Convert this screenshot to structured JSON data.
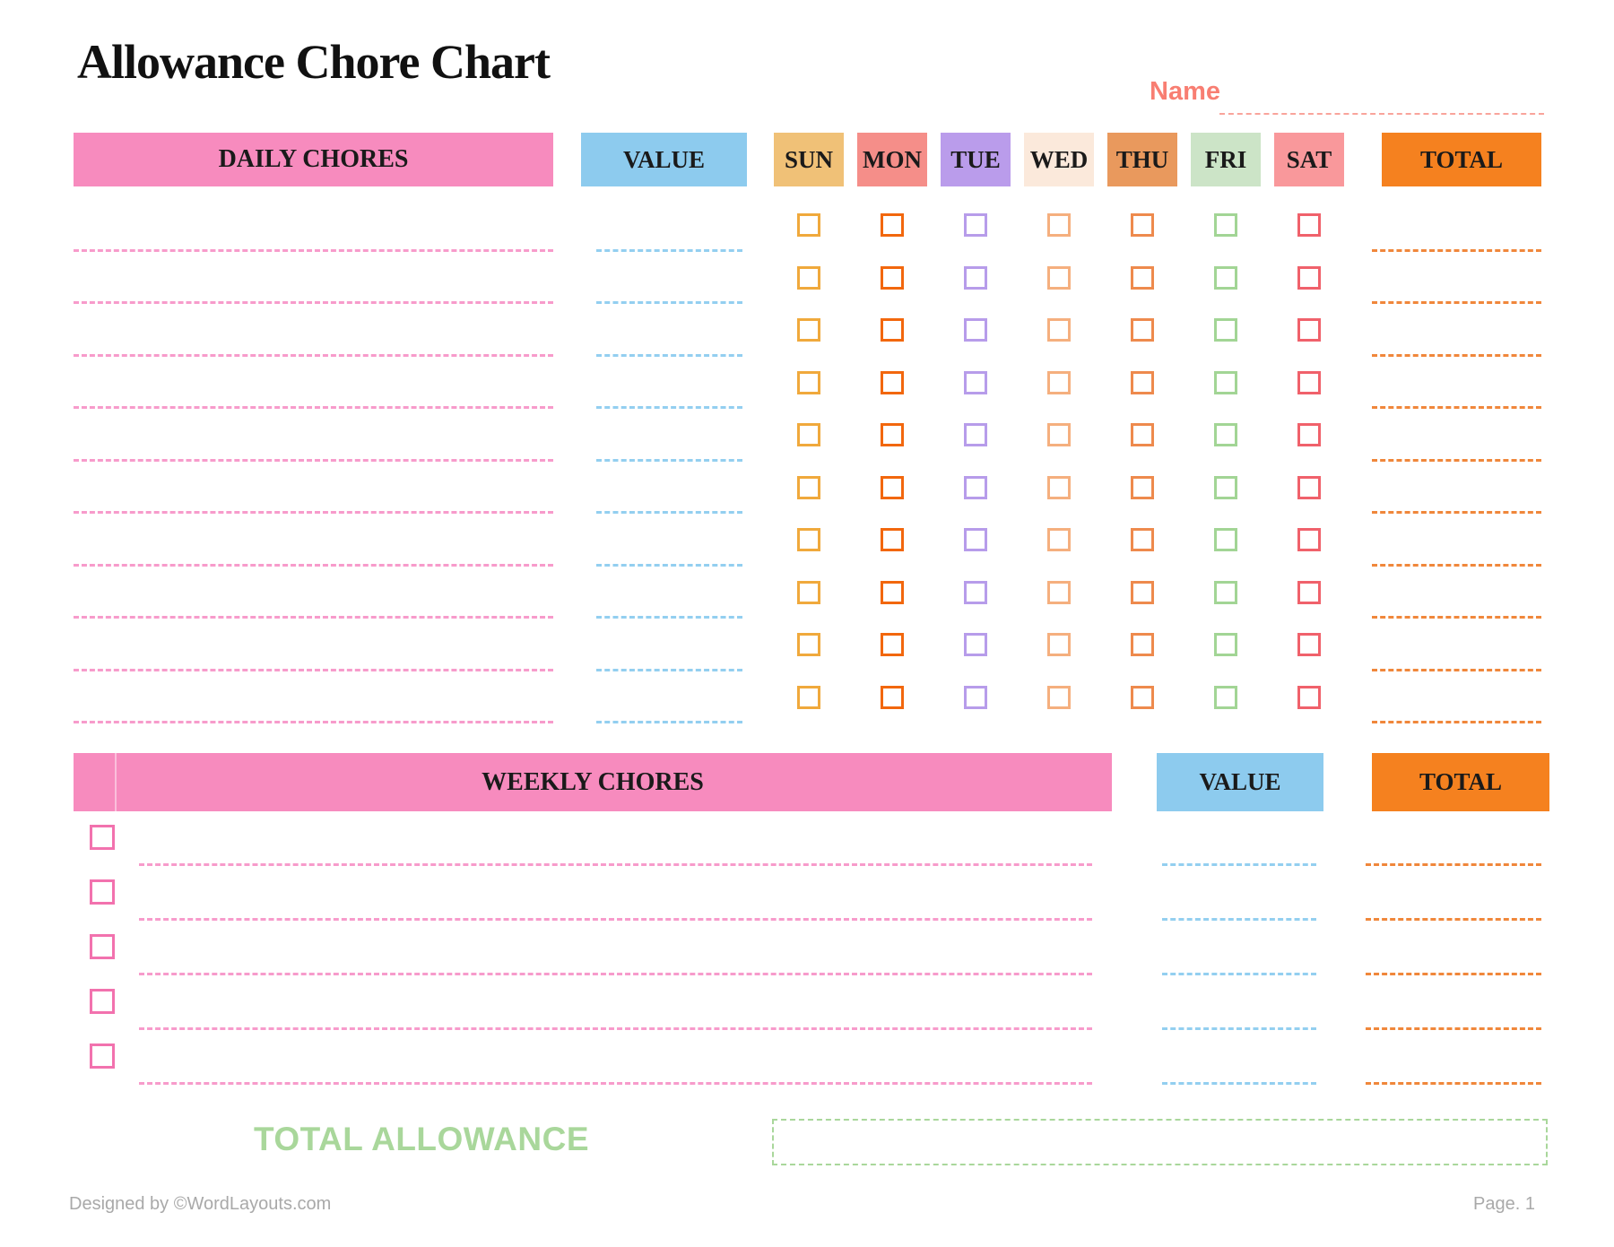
{
  "page": {
    "title": "Allowance Chore Chart",
    "name_label": "Name",
    "name_label_color": "#F87E72",
    "name_line_color": "#F9A49B"
  },
  "daily": {
    "header": "DAILY CHORES",
    "value_header": "VALUE",
    "total_header": "TOTAL",
    "row_count": 10,
    "days": [
      {
        "label": "SUN",
        "header_bg": "#F0C177",
        "checkbox_color": "#F0A93C"
      },
      {
        "label": "MON",
        "header_bg": "#F58E89",
        "checkbox_color": "#F2670D"
      },
      {
        "label": "TUE",
        "header_bg": "#BA9CEB",
        "checkbox_color": "#B79CEA"
      },
      {
        "label": "WED",
        "header_bg": "#FBE9DB",
        "checkbox_color": "#F5AF7E"
      },
      {
        "label": "THU",
        "header_bg": "#E9995D",
        "checkbox_color": "#EE8A4D"
      },
      {
        "label": "FRI",
        "header_bg": "#CCE4C7",
        "checkbox_color": "#A2D595"
      },
      {
        "label": "SAT",
        "header_bg": "#F9989B",
        "checkbox_color": "#F0616B"
      }
    ],
    "colors": {
      "band_bg": "#F78BBE",
      "value_bg": "#8DCBEE",
      "total_bg": "#F5811F",
      "chore_line": "#F79BCB",
      "value_line": "#93CFF0",
      "total_line": "#F0873B"
    }
  },
  "weekly": {
    "header": "WEEKLY CHORES",
    "value_header": "VALUE",
    "total_header": "TOTAL",
    "row_count": 5,
    "colors": {
      "band_bg": "#F78BBE",
      "value_bg": "#8DCBEE",
      "total_bg": "#F5811F",
      "checkbox_color": "#F272AE",
      "chore_line": "#F79BCB",
      "value_line": "#93CFF0",
      "total_line": "#F0873B"
    }
  },
  "total_allowance": {
    "label": "TOTAL ALLOWANCE",
    "text_color": "#A9D79B",
    "box_border_color": "#A9D79B"
  },
  "footer": {
    "left": "Designed by ©WordLayouts.com",
    "right": "Page. 1"
  }
}
